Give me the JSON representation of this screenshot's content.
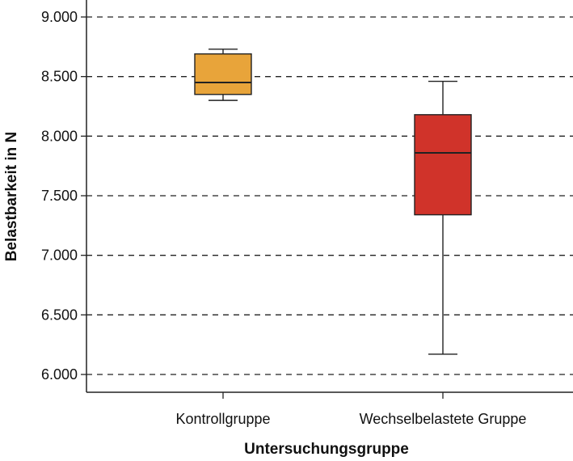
{
  "chart_data": {
    "type": "box",
    "xlabel": "Untersuchungsgruppe",
    "ylabel": "Belastbarkeit in N",
    "ylim": [
      5900,
      9050
    ],
    "yticks": [
      6000,
      6500,
      7000,
      7500,
      8000,
      8500,
      9000
    ],
    "ytick_labels": [
      "6.000",
      "6.500",
      "7.000",
      "7.500",
      "8.000",
      "8.500",
      "9.000"
    ],
    "grid": "horizontal-dashed",
    "categories": [
      "Kontrollgruppe",
      "Wechselbelastete Gruppe"
    ],
    "boxes": [
      {
        "min": 8300,
        "q1": 8350,
        "median": 8450,
        "q3": 8690,
        "max": 8730,
        "color": "#E8A43A"
      },
      {
        "min": 6170,
        "q1": 7340,
        "median": 7860,
        "q3": 8180,
        "max": 8460,
        "color": "#D0332A"
      }
    ]
  }
}
